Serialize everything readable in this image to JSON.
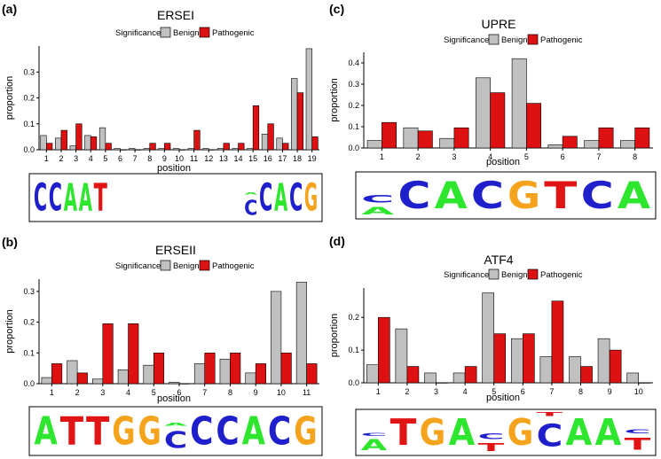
{
  "legend": {
    "title": "Significance",
    "benign_label": "Benign",
    "pathogenic_label": "Pathogenic"
  },
  "colors": {
    "benign": "#c0c0c0",
    "pathogenic": "#dd1111",
    "bar_stroke": "#000000",
    "A": "#2ee62e",
    "C": "#1f1fcc",
    "G": "#f5a31c",
    "T": "#e01414"
  },
  "chart_data": [
    {
      "panel": "(a)",
      "type": "bar",
      "title": "ERSEI",
      "xlabel": "position",
      "ylabel": "proportion",
      "ylim": [
        0,
        0.4
      ],
      "yticks": [
        "0.0",
        "0.1",
        "0.2",
        "0.3"
      ],
      "ytick_values": [
        0,
        0.1,
        0.2,
        0.3
      ],
      "categories": [
        "1",
        "2",
        "3",
        "4",
        "5",
        "6",
        "7",
        "8",
        "9",
        "10",
        "11",
        "12",
        "13",
        "14",
        "15",
        "16",
        "17",
        "18",
        "19"
      ],
      "series": [
        {
          "name": "Benign",
          "values": [
            0.055,
            0.045,
            0.015,
            0.055,
            0.085,
            0.005,
            0.005,
            0.005,
            0.005,
            0.005,
            0.005,
            0.005,
            0.005,
            0.005,
            0.005,
            0.06,
            0.045,
            0.275,
            0.39
          ]
        },
        {
          "name": "Pathogenic",
          "values": [
            0.025,
            0.075,
            0.1,
            0.05,
            0.025,
            0,
            0,
            0.025,
            0.025,
            0,
            0.075,
            0,
            0.025,
            0.025,
            0.17,
            0.1,
            0.025,
            0.22,
            0.05
          ]
        }
      ],
      "logo": [
        [
          {
            "l": "C",
            "h": 1
          }
        ],
        [
          {
            "l": "C",
            "h": 1
          }
        ],
        [
          {
            "l": "A",
            "h": 1
          }
        ],
        [
          {
            "l": "A",
            "h": 1
          }
        ],
        [
          {
            "l": "T",
            "h": 1
          }
        ],
        [],
        [],
        [],
        [],
        [],
        [],
        [],
        [],
        [],
        [
          {
            "l": "C",
            "h": 0.55
          },
          {
            "l": "A",
            "h": 0.08
          }
        ],
        [
          {
            "l": "C",
            "h": 1
          }
        ],
        [
          {
            "l": "A",
            "h": 1
          }
        ],
        [
          {
            "l": "C",
            "h": 1
          }
        ],
        [
          {
            "l": "G",
            "h": 1
          }
        ]
      ]
    },
    {
      "panel": "(b)",
      "type": "bar",
      "title": "ERSEII",
      "xlabel": "position",
      "ylabel": "proportion",
      "ylim": [
        0,
        0.34
      ],
      "yticks": [
        "0.0",
        "0.1",
        "0.2",
        "0.3"
      ],
      "ytick_values": [
        0,
        0.1,
        0.2,
        0.3
      ],
      "categories": [
        "1",
        "2",
        "3",
        "4",
        "5",
        "6",
        "7",
        "8",
        "9",
        "10",
        "11"
      ],
      "series": [
        {
          "name": "Benign",
          "values": [
            0.02,
            0.075,
            0.015,
            0.045,
            0.06,
            0.005,
            0.065,
            0.08,
            0.035,
            0.3,
            0.33
          ]
        },
        {
          "name": "Pathogenic",
          "values": [
            0.065,
            0.035,
            0.195,
            0.195,
            0.1,
            0,
            0.1,
            0.1,
            0.065,
            0.1,
            0.065
          ]
        }
      ],
      "logo": [
        [
          {
            "l": "A",
            "h": 1
          }
        ],
        [
          {
            "l": "T",
            "h": 1
          }
        ],
        [
          {
            "l": "T",
            "h": 1
          }
        ],
        [
          {
            "l": "G",
            "h": 1
          }
        ],
        [
          {
            "l": "G",
            "h": 1
          }
        ],
        [
          {
            "l": "C",
            "h": 0.6
          },
          {
            "l": "A",
            "h": 0.1
          }
        ],
        [
          {
            "l": "C",
            "h": 1
          }
        ],
        [
          {
            "l": "C",
            "h": 1
          }
        ],
        [
          {
            "l": "A",
            "h": 1
          }
        ],
        [
          {
            "l": "C",
            "h": 1
          }
        ],
        [
          {
            "l": "G",
            "h": 1
          }
        ]
      ]
    },
    {
      "panel": "(c)",
      "type": "bar",
      "title": "UPRE",
      "xlabel": "position",
      "ylabel": "proportion",
      "ylim": [
        0,
        0.45
      ],
      "yticks": [
        "0.0",
        "0.1",
        "0.2",
        "0.3",
        "0.4"
      ],
      "ytick_values": [
        0,
        0.1,
        0.2,
        0.3,
        0.4
      ],
      "categories": [
        "1",
        "2",
        "3",
        "4",
        "5",
        "6",
        "7",
        "8"
      ],
      "series": [
        {
          "name": "Benign",
          "values": [
            0.035,
            0.095,
            0.045,
            0.33,
            0.42,
            0.015,
            0.035,
            0.035
          ]
        },
        {
          "name": "Pathogenic",
          "values": [
            0.12,
            0.08,
            0.095,
            0.26,
            0.21,
            0.055,
            0.095,
            0.095
          ]
        }
      ],
      "logo": [
        [
          {
            "l": "A",
            "h": 0.28
          },
          {
            "l": "C",
            "h": 0.28
          }
        ],
        [
          {
            "l": "C",
            "h": 1
          }
        ],
        [
          {
            "l": "A",
            "h": 1
          }
        ],
        [
          {
            "l": "C",
            "h": 1
          }
        ],
        [
          {
            "l": "G",
            "h": 1
          }
        ],
        [
          {
            "l": "T",
            "h": 1
          }
        ],
        [
          {
            "l": "C",
            "h": 1
          }
        ],
        [
          {
            "l": "A",
            "h": 1
          }
        ]
      ]
    },
    {
      "panel": "(d)",
      "type": "bar",
      "title": "ATF4",
      "xlabel": "position",
      "ylabel": "proportion",
      "ylim": [
        0,
        0.29
      ],
      "yticks": [
        "0.0",
        "0.1",
        "0.2"
      ],
      "ytick_values": [
        0,
        0.1,
        0.2
      ],
      "categories": [
        "1",
        "2",
        "3",
        "4",
        "5",
        "6",
        "7",
        "8",
        "9",
        "10"
      ],
      "series": [
        {
          "name": "Benign",
          "values": [
            0.055,
            0.165,
            0.03,
            0.03,
            0.275,
            0.135,
            0.08,
            0.08,
            0.135,
            0.03
          ]
        },
        {
          "name": "Pathogenic",
          "values": [
            0.2,
            0.05,
            0,
            0.05,
            0.15,
            0.15,
            0.25,
            0.05,
            0.1,
            0
          ]
        }
      ],
      "logo": [
        [
          {
            "l": "A",
            "h": 0.4
          },
          {
            "l": "C",
            "h": 0.1
          }
        ],
        [
          {
            "l": "T",
            "h": 1
          }
        ],
        [
          {
            "l": "G",
            "h": 1
          }
        ],
        [
          {
            "l": "A",
            "h": 1
          }
        ],
        [
          {
            "l": "T",
            "h": 0.3
          },
          {
            "l": "C",
            "h": 0.22
          }
        ],
        [
          {
            "l": "G",
            "h": 1
          }
        ],
        [
          {
            "l": "C",
            "h": 0.85
          },
          {
            "l": "T",
            "h": 0.15
          }
        ],
        [
          {
            "l": "A",
            "h": 1
          }
        ],
        [
          {
            "l": "A",
            "h": 1
          }
        ],
        [
          {
            "l": "T",
            "h": 0.45
          },
          {
            "l": "C",
            "h": 0.15
          }
        ]
      ]
    }
  ]
}
